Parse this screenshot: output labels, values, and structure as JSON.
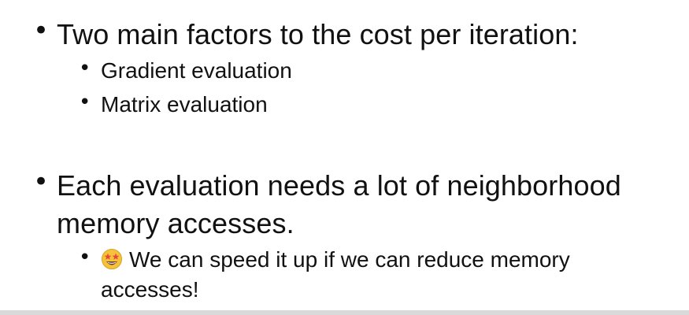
{
  "bullets": [
    {
      "text": "Two main factors to the cost per iteration:",
      "sub": [
        {
          "text": "Gradient evaluation"
        },
        {
          "text": "Matrix evaluation"
        }
      ]
    },
    {
      "text": "Each evaluation needs a lot of neighborhood memory accesses.",
      "sub": [
        {
          "icon": "star-struck-emoji-icon",
          "text": "We can speed it up if we can reduce memory accesses!"
        }
      ]
    }
  ],
  "bullet_glyph": "•",
  "colors": {
    "text": "#111111",
    "background": "#ffffff",
    "emoji_face": "#f5c33b",
    "emoji_star": "#e8463a"
  }
}
